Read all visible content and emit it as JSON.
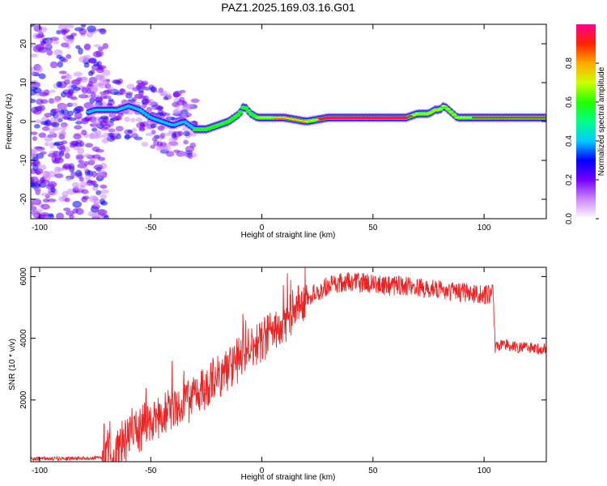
{
  "title": "PAZ1.2025.169.03.16.G01",
  "chart_data": [
    {
      "type": "heatmap",
      "xlabel": "Height of straight line (km)",
      "ylabel": "Frequency (Hz)",
      "xlim": [
        -104,
        128
      ],
      "ylim": [
        -25,
        25
      ],
      "x_ticks": [
        -100,
        -50,
        0,
        50,
        100
      ],
      "y_ticks": [
        -20,
        -10,
        0,
        10,
        20
      ],
      "colorbar": {
        "label": "Normalized spectral amplitude",
        "range": [
          0,
          1
        ],
        "ticks": [
          "0.0",
          "0.2",
          "0.4",
          "0.6",
          "0.8"
        ],
        "colors": [
          "#ffffff",
          "#cc88ff",
          "#7700ff",
          "#0000ff",
          "#00ccff",
          "#00ff88",
          "#22ff00",
          "#ccff00",
          "#ffaa00",
          "#ff2200",
          "#ff0088"
        ]
      },
      "ridge": {
        "x": [
          -80,
          -75,
          -70,
          -65,
          -60,
          -55,
          -50,
          -45,
          -40,
          -35,
          -30,
          -25,
          -20,
          -15,
          -10,
          -8,
          -5,
          -2,
          0,
          10,
          20,
          30,
          40,
          50,
          60,
          65,
          70,
          75,
          78,
          80,
          82,
          84,
          86,
          88,
          90,
          95,
          100,
          110,
          120,
          128
        ],
        "y": [
          2,
          3,
          3,
          3,
          4,
          3,
          1,
          0,
          -1,
          0,
          -2,
          -2,
          -1,
          0,
          2,
          4,
          2,
          1,
          1,
          1,
          0,
          1,
          1,
          1,
          1,
          1,
          2,
          2,
          3,
          3,
          4,
          3,
          2,
          1,
          1,
          1,
          1,
          1,
          1,
          1
        ]
      }
    },
    {
      "type": "line",
      "xlabel": "Height of straight line (km)",
      "ylabel": "SNR (10 * v/v)",
      "xlim": [
        -104,
        128
      ],
      "ylim": [
        0,
        6300
      ],
      "x_ticks": [
        -100,
        -50,
        0,
        50,
        100
      ],
      "y_ticks": [
        2000,
        4000,
        6000
      ],
      "color": "#ee2222",
      "series": [
        {
          "x": [
            -104,
            -95,
            -85,
            -75,
            -70,
            -65,
            -60,
            -55,
            -50,
            -45,
            -40,
            -35,
            -30,
            -25,
            -20,
            -15,
            -10,
            -5,
            0,
            5,
            10,
            15,
            20,
            25,
            30,
            35,
            40,
            45,
            50,
            55,
            60,
            65,
            70,
            75,
            80,
            85,
            90,
            95,
            100,
            104,
            105,
            107,
            110,
            115,
            120,
            125,
            128
          ],
          "values": [
            100,
            100,
            100,
            120,
            200,
            500,
            900,
            1100,
            1300,
            1500,
            1800,
            2000,
            2200,
            2400,
            2700,
            3000,
            3400,
            3800,
            3900,
            4300,
            4600,
            5000,
            5300,
            5500,
            5700,
            5800,
            5850,
            5800,
            5750,
            5700,
            5700,
            5700,
            5650,
            5600,
            5550,
            5500,
            5500,
            5450,
            5400,
            5450,
            3700,
            3800,
            3800,
            3700,
            3700,
            3650,
            3650
          ]
        }
      ]
    }
  ]
}
